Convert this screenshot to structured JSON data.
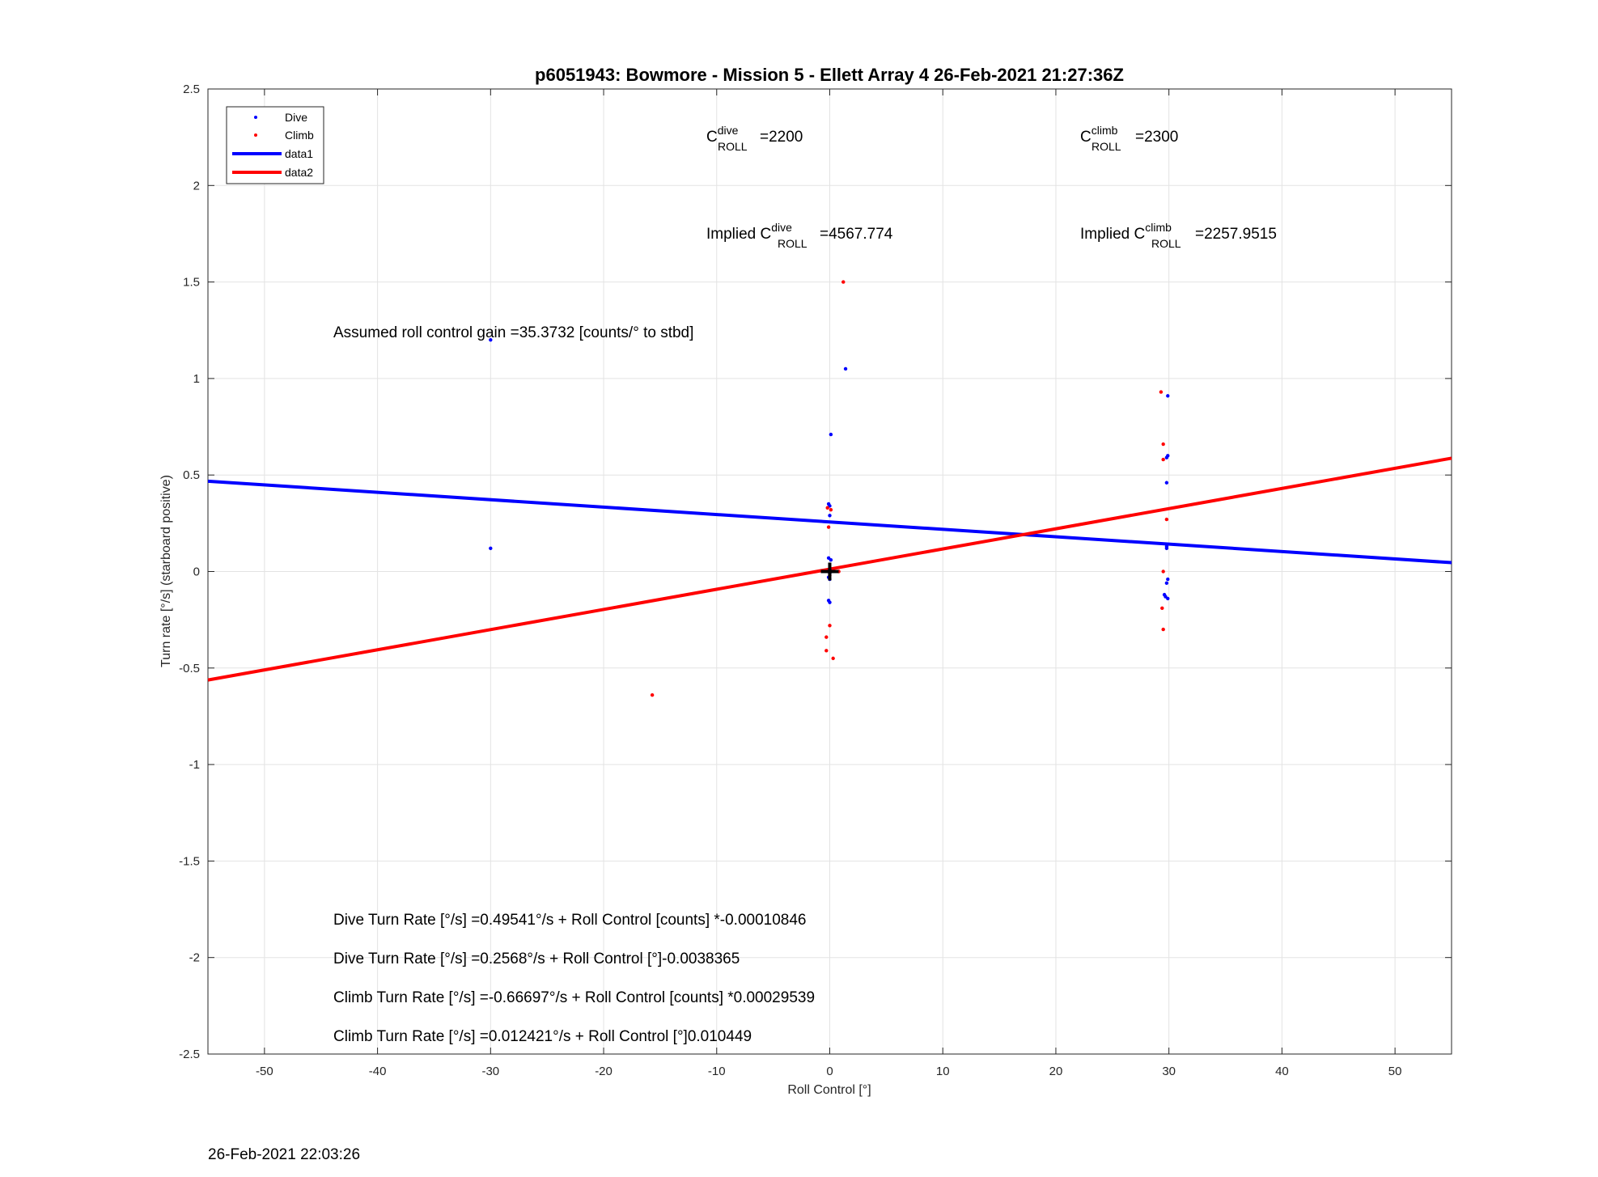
{
  "chart_data": {
    "type": "scatter",
    "title": "p6051943: Bowmore - Mission 5 - Ellett Array 4 26-Feb-2021 21:27:36Z",
    "xlabel": "Roll Control [°]",
    "ylabel": "Turn rate [°/s] (starboard positive)",
    "xlim": [
      -55,
      55
    ],
    "ylim": [
      -2.5,
      2.5
    ],
    "xticks": [
      -50,
      -40,
      -30,
      -20,
      -10,
      0,
      10,
      20,
      30,
      40,
      50
    ],
    "yticks": [
      -2.5,
      -2,
      -1.5,
      -1,
      -0.5,
      0,
      0.5,
      1,
      1.5,
      2,
      2.5
    ],
    "ytick_labels": [
      "-2.5",
      "-2",
      "-1.5",
      "-1",
      "-0.5",
      "0",
      "0.5",
      "1",
      "1.5",
      "2",
      "2.5"
    ],
    "grid": true,
    "legend_position": "top-left",
    "series": [
      {
        "name": "Dive",
        "kind": "points",
        "color": "#0000ff",
        "points": [
          [
            -30,
            1.2
          ],
          [
            -30,
            0.12
          ],
          [
            1.4,
            1.05
          ],
          [
            0.1,
            0.71
          ],
          [
            -0.1,
            0.35
          ],
          [
            0,
            0.34
          ],
          [
            0,
            0.29
          ],
          [
            -0.1,
            0.07
          ],
          [
            0.1,
            0.06
          ],
          [
            0,
            0.01
          ],
          [
            0,
            -0.01
          ],
          [
            -0.1,
            -0.03
          ],
          [
            0,
            -0.04
          ],
          [
            -0.1,
            -0.15
          ],
          [
            0,
            -0.16
          ],
          [
            29.9,
            0.91
          ],
          [
            29.8,
            0.59
          ],
          [
            29.9,
            0.6
          ],
          [
            29.8,
            0.46
          ],
          [
            29.8,
            0.13
          ],
          [
            29.8,
            0.12
          ],
          [
            29.9,
            -0.04
          ],
          [
            29.8,
            -0.06
          ],
          [
            29.6,
            -0.12
          ],
          [
            29.7,
            -0.13
          ],
          [
            29.9,
            -0.14
          ]
        ]
      },
      {
        "name": "Climb",
        "kind": "points",
        "color": "#ff0000",
        "points": [
          [
            1.2,
            1.5
          ],
          [
            -0.2,
            0.33
          ],
          [
            0.1,
            0.32
          ],
          [
            -0.1,
            0.23
          ],
          [
            0.8,
            0
          ],
          [
            0,
            -0.02
          ],
          [
            0,
            -0.28
          ],
          [
            -0.3,
            -0.34
          ],
          [
            -0.3,
            -0.41
          ],
          [
            0.3,
            -0.45
          ],
          [
            -15.7,
            -0.64
          ],
          [
            29.3,
            0.93
          ],
          [
            29.5,
            0.66
          ],
          [
            29.5,
            0.58
          ],
          [
            29.8,
            0.27
          ],
          [
            29.5,
            0
          ],
          [
            29.4,
            -0.19
          ],
          [
            29.5,
            -0.3
          ]
        ]
      },
      {
        "name": "data1",
        "kind": "line",
        "color": "#0000ff",
        "points": [
          [
            -55,
            0.4679
          ],
          [
            55,
            0.0459
          ]
        ]
      },
      {
        "name": "data2",
        "kind": "line",
        "color": "#ff0000",
        "points": [
          [
            -55,
            -0.5622
          ],
          [
            55,
            0.5871
          ]
        ]
      }
    ],
    "marker": {
      "x": 0,
      "y": 0,
      "symbol": "+",
      "color": "#000000"
    },
    "annotations": {
      "c_dive": {
        "base": "C",
        "sup": "dive",
        "sub": "ROLL",
        "value": "=2200"
      },
      "c_climb": {
        "base": "C",
        "sup": "climb",
        "sub": "ROLL",
        "value": "=2300"
      },
      "implied_dive": {
        "prefix": "Implied ",
        "base": "C",
        "sup": "dive",
        "sub": "ROLL",
        "value": "=4567.774"
      },
      "implied_climb": {
        "prefix": "Implied ",
        "base": "C",
        "sup": "climb",
        "sub": "ROLL",
        "value": "=2257.9515"
      },
      "gain": "Assumed roll control gain =35.3732 [counts/° to stbd]",
      "eq1": "Dive Turn Rate [°/s] =0.49541°/s + Roll Control [counts] *-0.00010846",
      "eq2": "Dive Turn Rate [°/s] =0.2568°/s + Roll Control [°]-0.0038365",
      "eq3": "Climb Turn Rate [°/s] =-0.66697°/s + Roll Control [counts] *0.00029539",
      "eq4": "Climb Turn Rate [°/s] =0.012421°/s + Roll Control [°]0.010449"
    }
  },
  "footer_timestamp": "26-Feb-2021 22:03:26"
}
